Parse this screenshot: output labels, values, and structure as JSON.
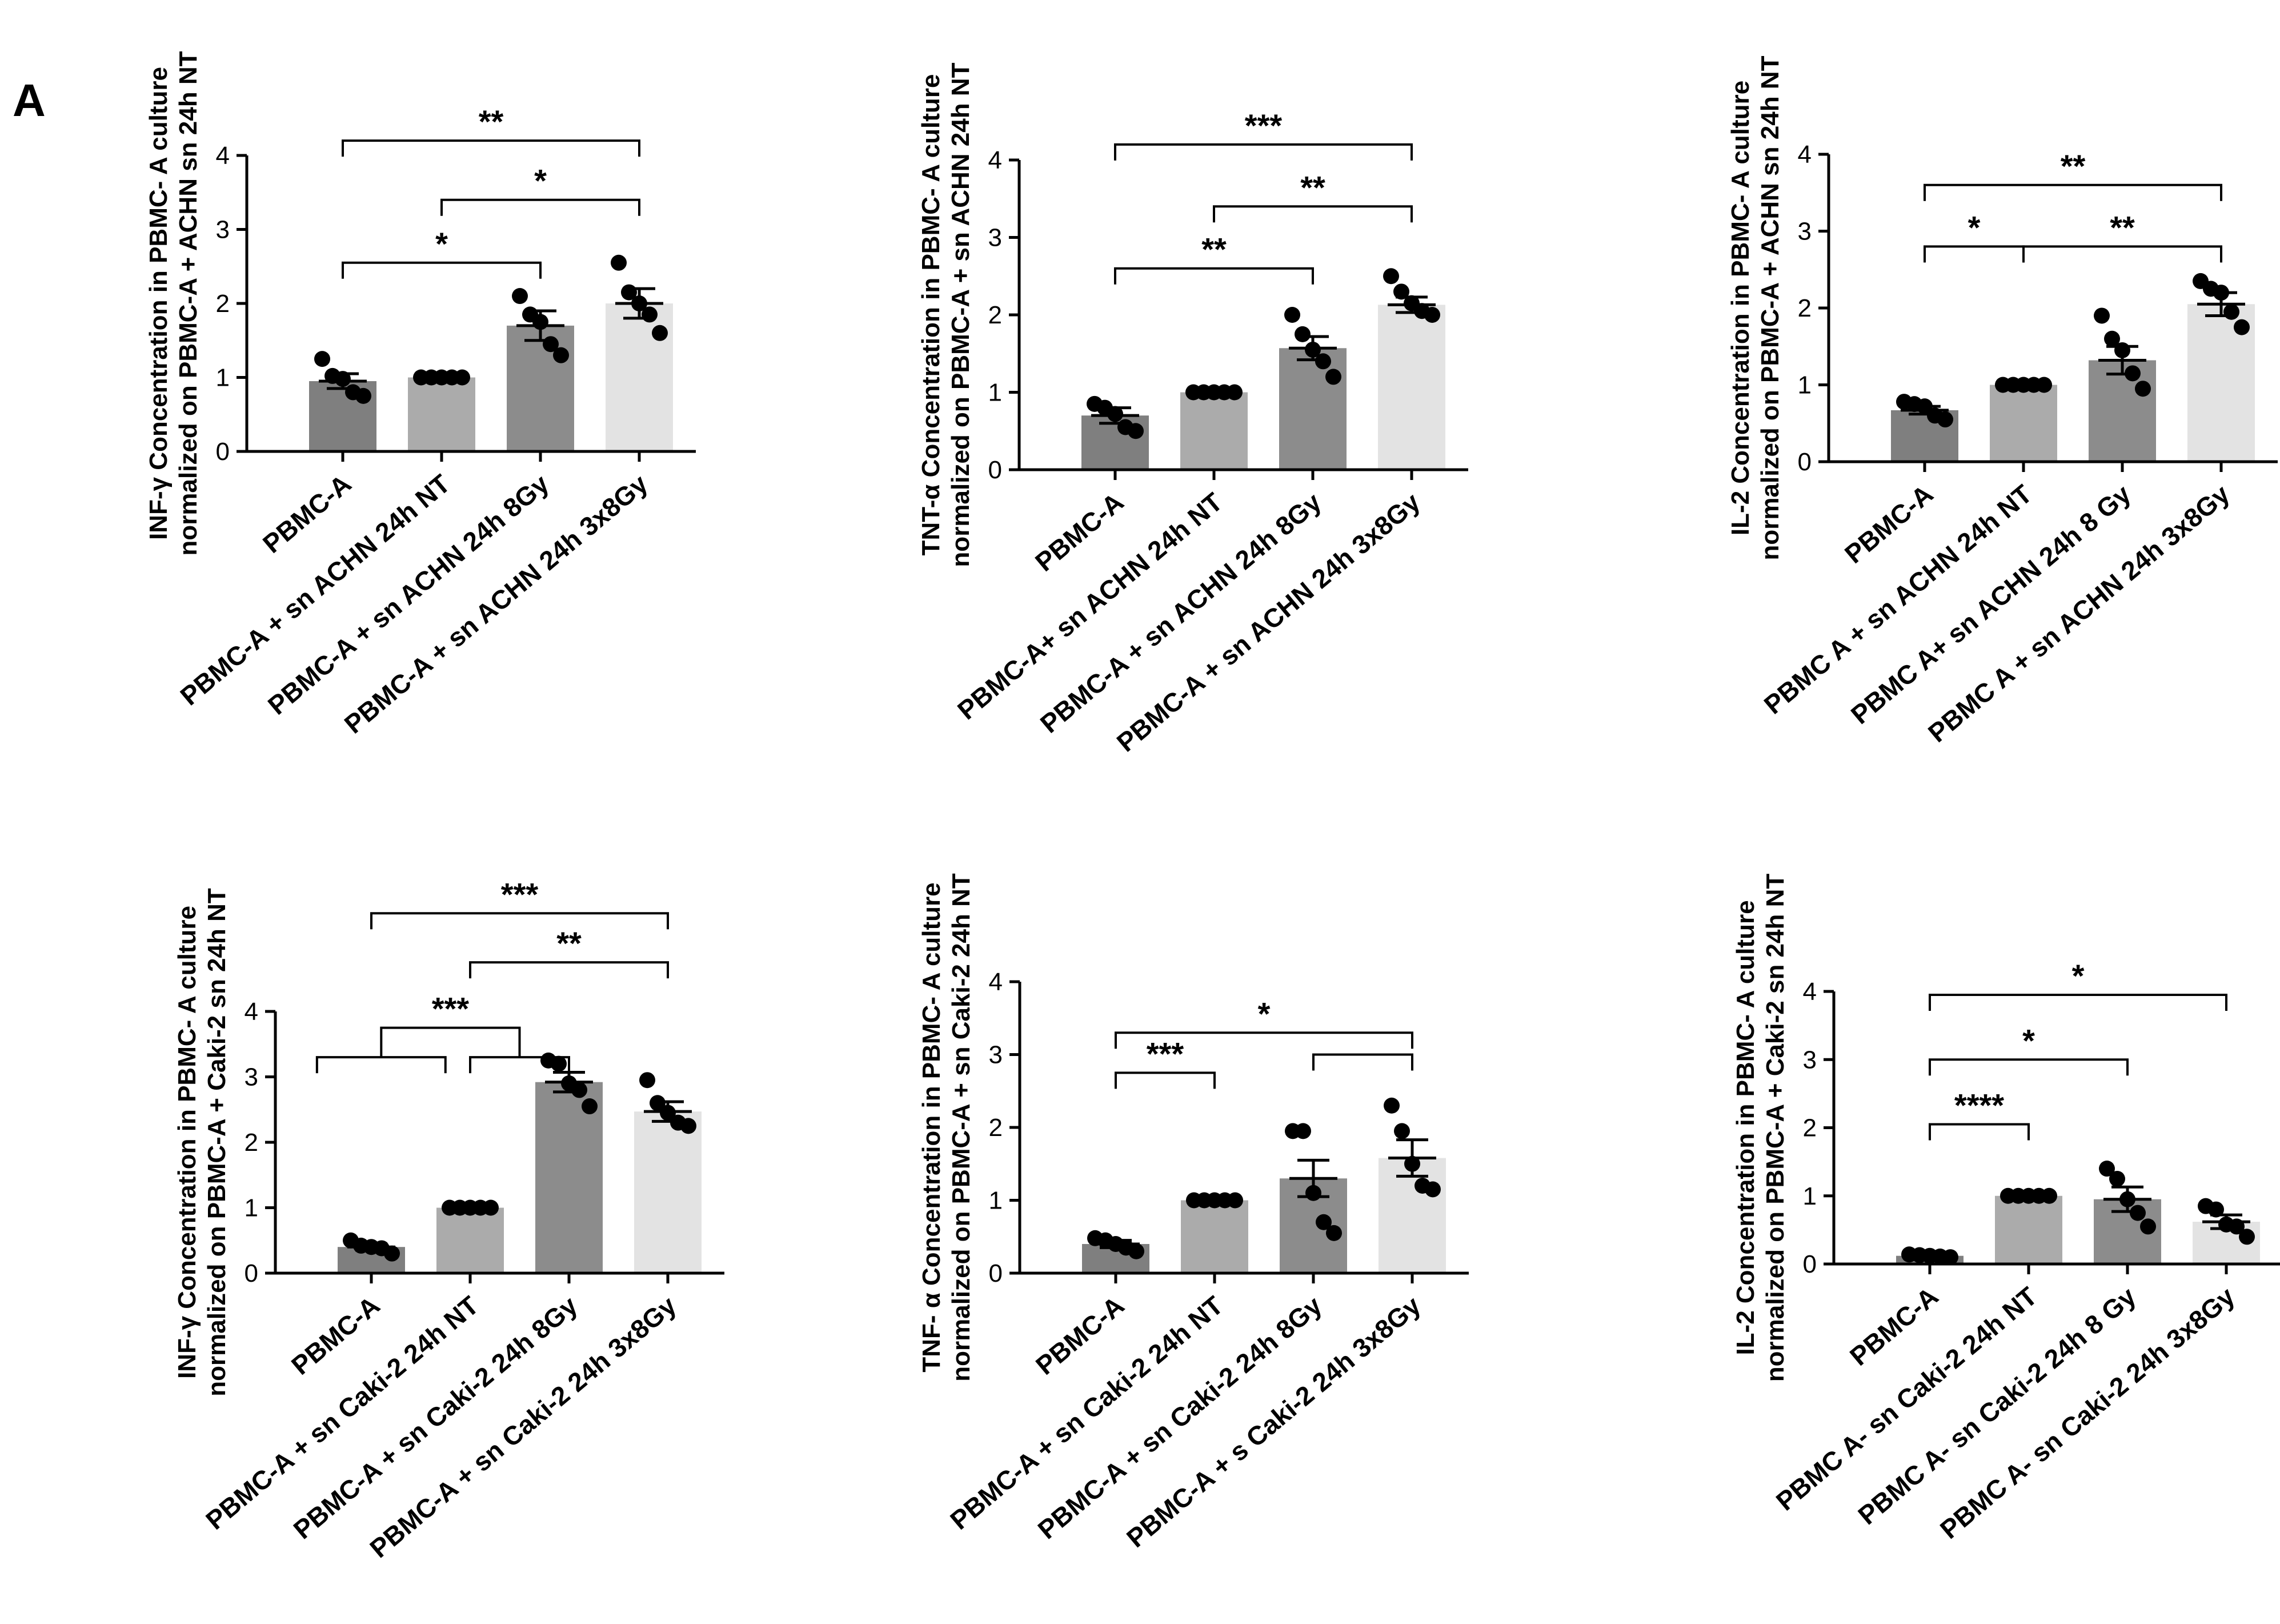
{
  "panel_label": "A",
  "colors": {
    "bar_fills": [
      "#7f7f7f",
      "#ababab",
      "#8c8c8c",
      "#e3e3e3"
    ],
    "ink": "#000000"
  },
  "chart_data": [
    {
      "type": "bar",
      "ylabel": "INF-γ Concentration in PBMC- A culture",
      "ylabel2": "normalized on PBMC-A + ACHN sn 24h NT",
      "ylim": [
        0,
        4
      ],
      "yticks": [
        "0",
        "1",
        "2",
        "3",
        "4"
      ],
      "categories": [
        "PBMC-A",
        "PBMC-A + sn  ACHN 24h NT",
        "PBMC-A + sn ACHN 24h 8Gy",
        "PBMC-A + sn ACHN 24h 3x8Gy"
      ],
      "values": [
        0.95,
        1.0,
        1.7,
        2.0
      ],
      "sem": [
        0.1,
        0.0,
        0.2,
        0.2
      ],
      "points": [
        [
          1.25,
          1.02,
          0.98,
          0.8,
          0.75
        ],
        [
          1,
          1,
          1,
          1,
          1
        ],
        [
          2.1,
          1.85,
          1.75,
          1.45,
          1.3
        ],
        [
          2.55,
          2.15,
          2.0,
          1.85,
          1.6
        ]
      ],
      "annotations": [
        {
          "from": 0,
          "to": 3,
          "label": "**",
          "y": 4.2
        },
        {
          "from": 1,
          "to": 3,
          "label": "*",
          "y": 3.4
        },
        {
          "from": 0,
          "to": 2,
          "label": "*",
          "y": 2.55
        }
      ]
    },
    {
      "type": "bar",
      "ylabel": "TNT-α Concentration in PBMC- A culture",
      "ylabel2": "normalized on PBMC-A + sn ACHN 24h NT",
      "ylim": [
        0,
        4
      ],
      "yticks": [
        "0",
        "1",
        "2",
        "3",
        "4"
      ],
      "categories": [
        "PBMC-A",
        "PBMC-A+ sn  ACHN 24h NT",
        "PBMC-A + sn  ACHN 24h 8Gy",
        "PBMC-A + sn  ACHN 24h 3x8Gy"
      ],
      "values": [
        0.7,
        1.0,
        1.57,
        2.13
      ],
      "sem": [
        0.1,
        0.0,
        0.15,
        0.1
      ],
      "points": [
        [
          0.85,
          0.8,
          0.72,
          0.55,
          0.5
        ],
        [
          1,
          1,
          1,
          1,
          1
        ],
        [
          2.0,
          1.75,
          1.55,
          1.4,
          1.2
        ],
        [
          2.5,
          2.3,
          2.15,
          2.05,
          2.0
        ]
      ],
      "annotations": [
        {
          "from": 0,
          "to": 3,
          "label": "***",
          "y": 4.2
        },
        {
          "from": 1,
          "to": 3,
          "label": "**",
          "y": 3.4
        },
        {
          "from": 0,
          "to": 2,
          "label": "**",
          "y": 2.6
        }
      ]
    },
    {
      "type": "bar",
      "ylabel": "IL-2 Concentration in PBMC- A culture",
      "ylabel2": "normalized on PBMC-A + ACHN sn 24h NT",
      "ylim": [
        0,
        4
      ],
      "yticks": [
        "0",
        "1",
        "2",
        "3",
        "4"
      ],
      "categories": [
        "PBMC-A",
        "PBMC A + sn ACHN 24h NT",
        "PBMC A+ sn ACHN 24h 8 Gy",
        "PBMC A + sn ACHN 24h 3x8Gy"
      ],
      "values": [
        0.67,
        1.0,
        1.32,
        2.05
      ],
      "sem": [
        0.05,
        0.0,
        0.18,
        0.15
      ],
      "points": [
        [
          0.78,
          0.75,
          0.72,
          0.6,
          0.55
        ],
        [
          1,
          1,
          1,
          1,
          1
        ],
        [
          1.9,
          1.6,
          1.45,
          1.15,
          0.95
        ],
        [
          2.35,
          2.25,
          2.2,
          1.95,
          1.75
        ]
      ],
      "annotations": [
        {
          "from": 0,
          "to": 3,
          "label": "**",
          "y": 3.6
        },
        {
          "from": 0,
          "to": 1,
          "label": "*",
          "y": 2.8
        },
        {
          "from": 1,
          "to": 3,
          "label": "**",
          "y": 2.8
        }
      ]
    },
    {
      "type": "bar",
      "ylabel": "INF-γ Concentration in PBMC- A  culture",
      "ylabel2": "normalized on PBMC-A + Caki-2 sn 24h NT",
      "ylim": [
        0,
        4
      ],
      "yticks": [
        "0",
        "1",
        "2",
        "3",
        "4"
      ],
      "categories": [
        "PBMC-A",
        "PBMC-A + sn Caki-2  24h NT",
        "PBMC-A + sn Caki-2 24h 8Gy",
        "PBMC-A + sn Caki-2 24h 3x8Gy"
      ],
      "values": [
        0.4,
        1.0,
        2.92,
        2.47
      ],
      "sem": [
        0.05,
        0.0,
        0.15,
        0.15
      ],
      "points": [
        [
          0.5,
          0.42,
          0.4,
          0.38,
          0.3
        ],
        [
          1,
          1,
          1,
          1,
          1
        ],
        [
          3.25,
          3.2,
          2.9,
          2.8,
          2.55
        ],
        [
          2.95,
          2.6,
          2.45,
          2.3,
          2.25
        ]
      ],
      "annotations": [
        {
          "from": 0,
          "to": 3,
          "label": "***",
          "y": 5.5
        },
        {
          "from": 1,
          "to": 3,
          "label": "**",
          "y": 4.75
        },
        {
          "group": [
            [
              -0.55,
              0.75
            ],
            [
              1.0,
              2.0
            ]
          ],
          "label": "***",
          "y": 3.75,
          "drop": 0.45
        }
      ]
    },
    {
      "type": "bar",
      "ylabel": "TNF- α Concentration in PBMC- A culture",
      "ylabel2": "normalized on PBMC-A + sn Caki-2 24h NT",
      "ylim": [
        0,
        4
      ],
      "yticks": [
        "0",
        "1",
        "2",
        "3",
        "4"
      ],
      "categories": [
        "PBMC-A",
        "PBMC-A + sn Caki-2 24h NT",
        "PBMC-A + sn Caki-2 24h 8Gy",
        "PBMC-A + s Caki-2 24h 3x8Gy"
      ],
      "values": [
        0.4,
        1.0,
        1.3,
        1.58
      ],
      "sem": [
        0.05,
        0.0,
        0.25,
        0.25
      ],
      "points": [
        [
          0.48,
          0.45,
          0.4,
          0.35,
          0.3
        ],
        [
          1,
          1,
          1,
          1,
          1
        ],
        [
          1.95,
          1.95,
          1.1,
          0.7,
          0.55
        ],
        [
          2.3,
          1.95,
          1.5,
          1.2,
          1.15
        ]
      ],
      "annotations": [
        {
          "from": 0,
          "to": 3,
          "label": "*",
          "y": 3.3
        },
        {
          "from": 0,
          "to": 1,
          "label": "***",
          "y": 2.75
        },
        {
          "from": 2,
          "to": 3,
          "label": "",
          "y": 3.0
        }
      ]
    },
    {
      "type": "bar",
      "ylabel": "IL-2 Concentration in PBMC- A  culture",
      "ylabel2": "normalized on PBMC-A + Caki-2 sn 24h NT",
      "ylim": [
        0,
        4
      ],
      "yticks": [
        "0",
        "1",
        "2",
        "3",
        "4"
      ],
      "categories": [
        "PBMC-A",
        "PBMC A- sn Caki-2 24h NT",
        "PBMC A- sn Caki-2 24h 8 Gy",
        "PBMC A- sn Caki-2 24h 3x8Gy"
      ],
      "values": [
        0.12,
        1.0,
        0.95,
        0.62
      ],
      "sem": [
        0.02,
        0.0,
        0.18,
        0.1
      ],
      "points": [
        [
          0.14,
          0.13,
          0.12,
          0.11,
          0.1
        ],
        [
          1,
          1,
          1,
          1,
          1
        ],
        [
          1.4,
          1.25,
          0.95,
          0.75,
          0.55
        ],
        [
          0.85,
          0.8,
          0.58,
          0.55,
          0.4
        ]
      ],
      "annotations": [
        {
          "from": 0,
          "to": 3,
          "label": "*",
          "y": 3.95
        },
        {
          "from": 0,
          "to": 2,
          "label": "*",
          "y": 3.0
        },
        {
          "from": 0,
          "to": 1,
          "label": "****",
          "y": 2.05
        }
      ]
    }
  ]
}
